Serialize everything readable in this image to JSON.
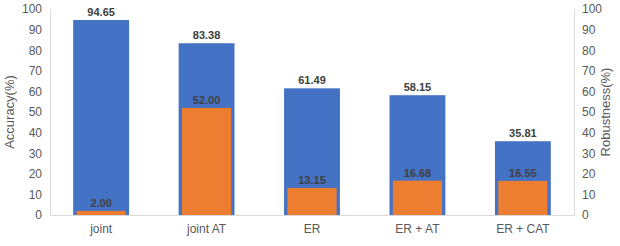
{
  "chart_data": {
    "type": "bar",
    "categories": [
      "joint",
      "joint AT",
      "ER",
      "ER + AT",
      "ER + CAT"
    ],
    "series": [
      {
        "name": "Accuracy",
        "color": "#4472c4",
        "values": [
          94.65,
          83.38,
          61.49,
          58.15,
          35.81
        ],
        "value_labels": [
          "94.65",
          "83.38",
          "61.49",
          "58.15",
          "35.81"
        ]
      },
      {
        "name": "Robustness",
        "color": "#ed7d31",
        "axis": "y2",
        "values": [
          2.0,
          52.0,
          13.15,
          16.68,
          16.55
        ],
        "value_labels": [
          "2.00",
          "52.00",
          "13.15",
          "16.68",
          "16.55"
        ]
      }
    ],
    "y_label": "Accuracy(%)",
    "y2_label": "Robustness(%)",
    "ylim": [
      0,
      100
    ],
    "yticks": [
      0,
      10,
      20,
      30,
      40,
      50,
      60,
      70,
      80,
      90,
      100
    ],
    "y2lim": [
      0,
      100
    ],
    "y2ticks": [
      0,
      10,
      20,
      30,
      40,
      50,
      60,
      70,
      80,
      90,
      100
    ],
    "data_labels": true,
    "grid": false
  }
}
